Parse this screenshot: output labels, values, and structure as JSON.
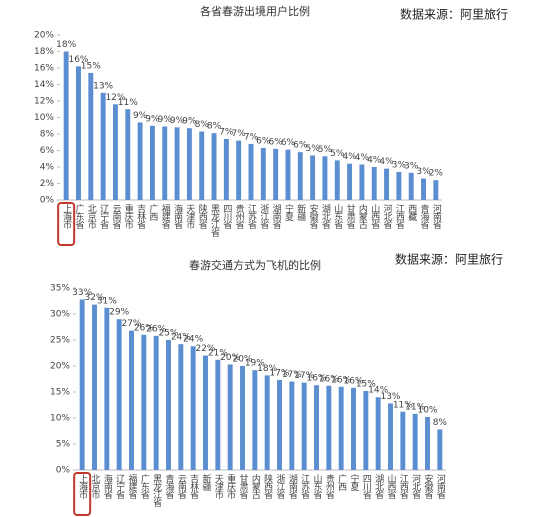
{
  "chart_data": [
    {
      "type": "bar",
      "title": "各省春游出境用户比例",
      "source": "数据来源：阿里旅行",
      "color": "#5b8ed0",
      "categories": [
        "上海市",
        "广东省",
        "北京市",
        "辽宁省",
        "云南省",
        "重庆市",
        "吉林省",
        "广西",
        "福建省",
        "海南省",
        "天津市",
        "陕西省",
        "黑龙江省",
        "四川省",
        "贵州省",
        "江苏省",
        "浙江省",
        "湖南省",
        "宁夏",
        "新疆",
        "安徽省",
        "湖北省",
        "山东省",
        "甘肃省",
        "内蒙古",
        "山西省",
        "河北省",
        "江西省",
        "西藏",
        "青海省",
        "河南省"
      ],
      "values": [
        18,
        16.2,
        15.4,
        13,
        11.6,
        11,
        9.4,
        9,
        8.9,
        8.8,
        8.7,
        8.3,
        8.1,
        7.4,
        7.2,
        6.8,
        6.3,
        6.2,
        6.1,
        5.8,
        5.4,
        5.3,
        4.8,
        4.4,
        4.3,
        4.0,
        3.8,
        3.4,
        3.3,
        2.6,
        2.4
      ],
      "value_labels": [
        "18%",
        "16%",
        "15%",
        "13%",
        "12%",
        "11%",
        "9%",
        "9%",
        "9%",
        "9%",
        "9%",
        "8%",
        "8%",
        "7%",
        "7%",
        "7%",
        "6%",
        "6%",
        "6%",
        "6%",
        "5%",
        "5%",
        "5%",
        "4%",
        "4%",
        "4%",
        "4%",
        "3%",
        "3%",
        "3%",
        "2%"
      ],
      "ylim": [
        0,
        20
      ],
      "yticks": [
        {
          "value": 0,
          "label": "0%"
        },
        {
          "value": 2,
          "label": "2%"
        },
        {
          "value": 4,
          "label": "4%"
        },
        {
          "value": 6,
          "label": "6%"
        },
        {
          "value": 8,
          "label": "8%"
        },
        {
          "value": 10,
          "label": "10%"
        },
        {
          "value": 12,
          "label": "12%"
        },
        {
          "value": 14,
          "label": "14%"
        },
        {
          "value": 16,
          "label": "16%"
        },
        {
          "value": 18,
          "label": "18%"
        },
        {
          "value": 20,
          "label": "20%"
        }
      ]
    },
    {
      "type": "bar",
      "title": "春游交通方式为飞机的比例",
      "source": "数据来源：阿里旅行",
      "color": "#5b8ed0",
      "categories": [
        "上海市",
        "北京市",
        "海南省",
        "辽宁省",
        "福建省",
        "广东省",
        "黑龙江省",
        "青海省",
        "云南省",
        "吉林省",
        "新疆",
        "天津市",
        "重庆市",
        "甘肃省",
        "内蒙古",
        "陕西省",
        "浙江省",
        "湖南省",
        "江苏省",
        "山东省",
        "贵州省",
        "广西",
        "宁夏",
        "四川省",
        "湖北省",
        "山西省",
        "江西省",
        "河北省",
        "安徽省",
        "河南省"
      ],
      "values": [
        32.8,
        31.8,
        31.2,
        29,
        26.8,
        26,
        25.8,
        25,
        24.2,
        23.8,
        22,
        21.2,
        20.3,
        20,
        19.2,
        18.2,
        17.3,
        17,
        16.8,
        16.3,
        16.2,
        16,
        15.8,
        15.2,
        14,
        12.8,
        11.2,
        10.8,
        10.2,
        7.8
      ],
      "value_labels": [
        "33%",
        "32%",
        "31%",
        "29%",
        "27%",
        "26%",
        "26%",
        "25%",
        "24%",
        "24%",
        "22%",
        "21%",
        "20%",
        "20%",
        "19%",
        "18%",
        "17%",
        "17%",
        "17%",
        "16%",
        "16%",
        "16%",
        "16%",
        "15%",
        "14%",
        "13%",
        "11%",
        "11%",
        "10%",
        "8%"
      ],
      "ylim": [
        0,
        35
      ],
      "yticks": [
        {
          "value": 0,
          "label": "0%"
        },
        {
          "value": 5,
          "label": "5%"
        },
        {
          "value": 10,
          "label": "10%"
        },
        {
          "value": 15,
          "label": "15%"
        },
        {
          "value": 20,
          "label": "20%"
        },
        {
          "value": 25,
          "label": "25%"
        },
        {
          "value": 30,
          "label": "30%"
        },
        {
          "value": 35,
          "label": "35%"
        }
      ]
    }
  ]
}
